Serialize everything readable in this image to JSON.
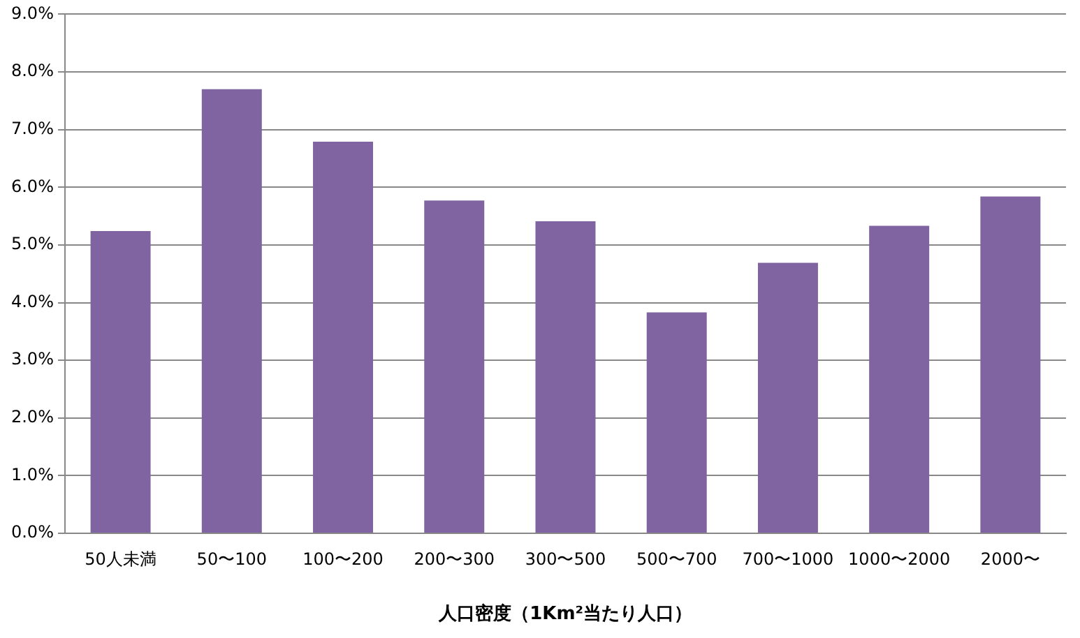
{
  "chart_data": {
    "type": "bar",
    "xlabel": "人口密度（1Km²当たり人口）",
    "categories": [
      "50人未満",
      "50〜100",
      "100〜200",
      "200〜300",
      "300〜500",
      "500〜700",
      "700〜1000",
      "1000〜2000",
      "2000〜"
    ],
    "values": [
      5.24,
      7.7,
      6.79,
      5.77,
      5.41,
      3.83,
      4.69,
      5.33,
      5.84
    ],
    "color": "#8064a2",
    "ylim": [
      0,
      9
    ],
    "yticks": [
      {
        "value": 0,
        "label": "0.0%"
      },
      {
        "value": 1,
        "label": "1.0%"
      },
      {
        "value": 2,
        "label": "2.0%"
      },
      {
        "value": 3,
        "label": "3.0%"
      },
      {
        "value": 4,
        "label": "4.0%"
      },
      {
        "value": 5,
        "label": "5.0%"
      },
      {
        "value": 6,
        "label": "6.0%"
      },
      {
        "value": 7,
        "label": "7.0%"
      },
      {
        "value": 8,
        "label": "8.0%"
      },
      {
        "value": 9,
        "label": "9.0%"
      }
    ],
    "grid": "y",
    "legend": false
  }
}
